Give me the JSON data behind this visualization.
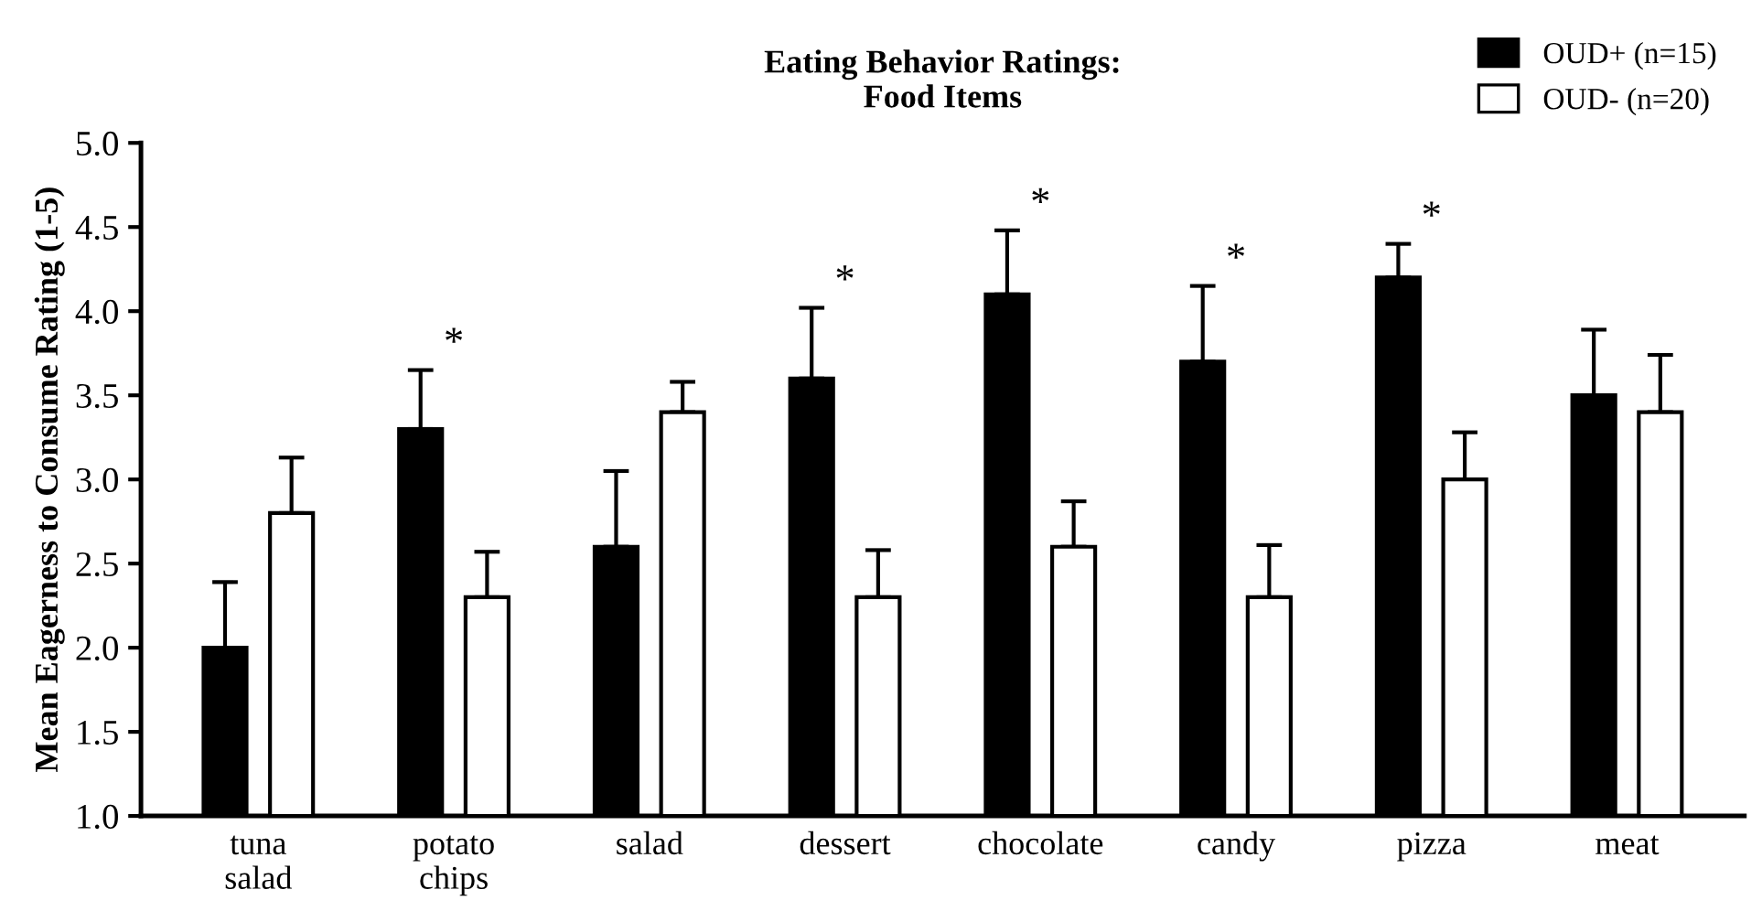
{
  "chart_data": {
    "type": "bar",
    "title": "Eating Behavior Ratings:\nFood Items",
    "ylabel": "Mean Eagerness to Consume Rating (1-5)",
    "categories": [
      "tuna\nsalad",
      "potato\nchips",
      "salad",
      "dessert",
      "chocolate",
      "candy",
      "pizza",
      "meat"
    ],
    "series": [
      {
        "name": "OUD+ (n=15)",
        "color": "#000000",
        "values": [
          2.0,
          3.3,
          2.6,
          3.6,
          4.1,
          3.7,
          4.2,
          3.5
        ],
        "errors": [
          [
            2.0,
            2.39
          ],
          [
            3.3,
            3.65
          ],
          [
            2.6,
            3.05
          ],
          [
            3.6,
            4.02
          ],
          [
            4.1,
            4.48
          ],
          [
            3.7,
            4.15
          ],
          [
            4.2,
            4.4
          ],
          [
            3.5,
            3.89
          ]
        ]
      },
      {
        "name": "OUD- (n=20)",
        "color": "#ffffff",
        "values": [
          2.8,
          2.3,
          3.4,
          2.3,
          2.6,
          2.3,
          3.0,
          3.4
        ],
        "errors": [
          [
            2.8,
            3.13
          ],
          [
            2.3,
            2.57
          ],
          [
            3.4,
            3.58
          ],
          [
            2.3,
            2.58
          ],
          [
            2.6,
            2.87
          ],
          [
            2.3,
            2.61
          ],
          [
            3.0,
            3.28
          ],
          [
            3.4,
            3.74
          ]
        ]
      }
    ],
    "annotations": [
      "*",
      "*",
      "*",
      "*",
      "*"
    ],
    "ylim": [
      1.0,
      5.0
    ],
    "yticks": [
      {
        "value": 1.0,
        "label": "1.0"
      },
      {
        "value": 1.5,
        "label": "1.5"
      },
      {
        "value": 2.0,
        "label": "2.0"
      },
      {
        "value": 2.5,
        "label": "2.5"
      },
      {
        "value": 3.0,
        "label": "3.0"
      },
      {
        "value": 3.5,
        "label": "3.5"
      },
      {
        "value": 4.0,
        "label": "4.0"
      },
      {
        "value": 4.5,
        "label": "4.5"
      },
      {
        "value": 5.0,
        "label": "5.0"
      }
    ],
    "grid": false,
    "legend": "top right"
  }
}
